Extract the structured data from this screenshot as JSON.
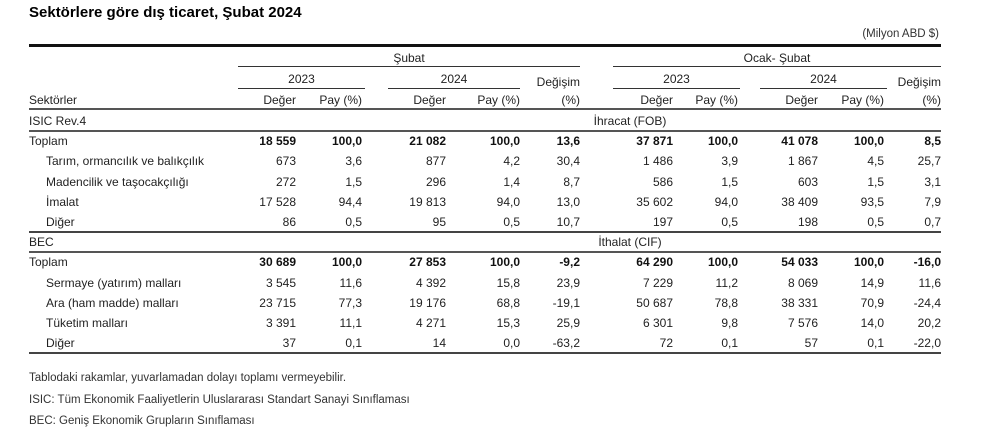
{
  "title": "Sektörlere göre dış ticaret, Şubat 2024",
  "unit": "(Milyon ABD $)",
  "header": {
    "group1": "Şubat",
    "group2": "Ocak- Şubat",
    "year_a": "2023",
    "year_b": "2024",
    "change_top": "Değişim",
    "change_bottom": "(%)",
    "sectors": "Sektörler",
    "value": "Değer",
    "share": "Pay (%)"
  },
  "sections": [
    {
      "label": "ISIC  Rev.4",
      "flow": "İhracat (FOB)",
      "rows": [
        {
          "name": "Toplam",
          "bold": true,
          "vals": [
            "18 559",
            "100,0",
            "21 082",
            "100,0",
            "13,6",
            "37 871",
            "100,0",
            "41 078",
            "100,0",
            "8,5"
          ]
        },
        {
          "name": "Tarım, ormancılık ve balıkçılık",
          "bold": false,
          "vals": [
            "673",
            "3,6",
            "877",
            "4,2",
            "30,4",
            "1 486",
            "3,9",
            "1 867",
            "4,5",
            "25,7"
          ]
        },
        {
          "name": "Madencilik ve taşocakçılığı",
          "bold": false,
          "vals": [
            "272",
            "1,5",
            "296",
            "1,4",
            "8,7",
            "586",
            "1,5",
            "603",
            "1,5",
            "3,1"
          ]
        },
        {
          "name": "İmalat",
          "bold": false,
          "vals": [
            "17 528",
            "94,4",
            "19 813",
            "94,0",
            "13,0",
            "35 602",
            "94,0",
            "38 409",
            "93,5",
            "7,9"
          ]
        },
        {
          "name": "Diğer",
          "bold": false,
          "vals": [
            "86",
            "0,5",
            "95",
            "0,5",
            "10,7",
            "197",
            "0,5",
            "198",
            "0,5",
            "0,7"
          ]
        }
      ]
    },
    {
      "label": "BEC",
      "flow": "İthalat (CIF)",
      "rows": [
        {
          "name": "Toplam",
          "bold": true,
          "vals": [
            "30 689",
            "100,0",
            "27 853",
            "100,0",
            "-9,2",
            "64 290",
            "100,0",
            "54 033",
            "100,0",
            "-16,0"
          ]
        },
        {
          "name": "Sermaye (yatırım) malları",
          "bold": false,
          "vals": [
            "3 545",
            "11,6",
            "4 392",
            "15,8",
            "23,9",
            "7 229",
            "11,2",
            "8 069",
            "14,9",
            "11,6"
          ]
        },
        {
          "name": "Ara (ham madde) malları",
          "bold": false,
          "vals": [
            "23 715",
            "77,3",
            "19 176",
            "68,8",
            "-19,1",
            "50 687",
            "78,8",
            "38 331",
            "70,9",
            "-24,4"
          ]
        },
        {
          "name": "Tüketim malları",
          "bold": false,
          "vals": [
            "3 391",
            "11,1",
            "4 271",
            "15,3",
            "25,9",
            "6 301",
            "9,8",
            "7 576",
            "14,0",
            "20,2"
          ]
        },
        {
          "name": "Diğer",
          "bold": false,
          "vals": [
            "37",
            "0,1",
            "14",
            "0,0",
            "-63,2",
            "72",
            "0,1",
            "57",
            "0,1",
            "-22,0"
          ]
        }
      ]
    }
  ],
  "footnotes": [
    "Tablodaki rakamlar, yuvarlamadan dolayı toplamı vermeyebilir.",
    "ISIC: Tüm Ekonomik Faaliyetlerin Uluslararası Standart Sanayi Sınıflaması",
    "BEC: Geniş Ekonomik Grupların Sınıflaması"
  ]
}
